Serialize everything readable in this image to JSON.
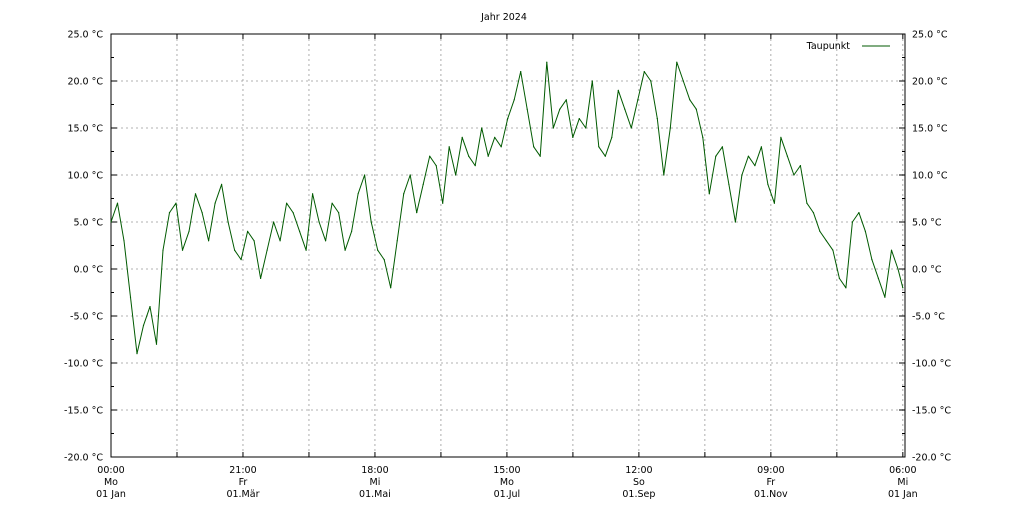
{
  "chart_data": {
    "type": "line",
    "title": "Jahr 2024",
    "xlabel": "",
    "ylabel": "",
    "ylim": [
      -20,
      25
    ],
    "y_ticks": [
      {
        "value": -20,
        "label": "-20.0 °C"
      },
      {
        "value": -15,
        "label": "-15.0 °C"
      },
      {
        "value": -10,
        "label": "-10.0 °C"
      },
      {
        "value": -5,
        "label": "-5.0 °C"
      },
      {
        "value": 0,
        "label": "0.0 °C"
      },
      {
        "value": 5,
        "label": "5.0 °C"
      },
      {
        "value": 10,
        "label": "10.0 °C"
      },
      {
        "value": 15,
        "label": "15.0 °C"
      },
      {
        "value": 20,
        "label": "20.0 °C"
      },
      {
        "value": 25,
        "label": "25.0 °C"
      }
    ],
    "xlim": [
      0,
      366.25
    ],
    "x_unit": "days since 01 Jan 2024 00:00",
    "x_ticks": [
      {
        "value": 0,
        "time": "00:00",
        "weekday": "Mo",
        "date": "01 Jan"
      },
      {
        "value": 60.875,
        "time": "21:00",
        "weekday": "Fr",
        "date": "01.Mär"
      },
      {
        "value": 121.75,
        "time": "18:00",
        "weekday": "Mi",
        "date": "01.Mai"
      },
      {
        "value": 182.625,
        "time": "15:00",
        "weekday": "Mo",
        "date": "01.Jul"
      },
      {
        "value": 243.5,
        "time": "12:00",
        "weekday": "So",
        "date": "01.Sep"
      },
      {
        "value": 304.375,
        "time": "09:00",
        "weekday": "Fr",
        "date": "01.Nov"
      },
      {
        "value": 365.25,
        "time": "06:00",
        "weekday": "Mi",
        "date": "01 Jan"
      }
    ],
    "grid": true,
    "legend_position": "top-right",
    "series": [
      {
        "name": "Taupunkt",
        "color": "#005a00",
        "x": [
          0,
          3,
          6,
          9,
          12,
          15,
          18,
          21,
          24,
          27,
          30,
          33,
          36,
          39,
          42,
          45,
          48,
          51,
          54,
          57,
          60,
          63,
          66,
          69,
          72,
          75,
          78,
          81,
          84,
          87,
          90,
          93,
          96,
          99,
          102,
          105,
          108,
          111,
          114,
          117,
          120,
          123,
          126,
          129,
          132,
          135,
          138,
          141,
          144,
          147,
          150,
          153,
          156,
          159,
          162,
          165,
          168,
          171,
          174,
          177,
          180,
          183,
          186,
          189,
          192,
          195,
          198,
          201,
          204,
          207,
          210,
          213,
          216,
          219,
          222,
          225,
          228,
          231,
          234,
          237,
          240,
          243,
          246,
          249,
          252,
          255,
          258,
          261,
          264,
          267,
          270,
          273,
          276,
          279,
          282,
          285,
          288,
          291,
          294,
          297,
          300,
          303,
          306,
          309,
          312,
          315,
          318,
          321,
          324,
          327,
          330,
          333,
          336,
          339,
          342,
          345,
          348,
          351,
          354,
          357,
          360,
          363,
          365.25
        ],
        "values": [
          5,
          7,
          3,
          -3,
          -9,
          -6,
          -4,
          -8,
          2,
          6,
          7,
          2,
          4,
          8,
          6,
          3,
          7,
          9,
          5,
          2,
          1,
          4,
          3,
          -1,
          2,
          5,
          3,
          7,
          6,
          4,
          2,
          8,
          5,
          3,
          7,
          6,
          2,
          4,
          8,
          10,
          5,
          2,
          1,
          -2,
          3,
          8,
          10,
          6,
          9,
          12,
          11,
          7,
          13,
          10,
          14,
          12,
          11,
          15,
          12,
          14,
          13,
          16,
          18,
          21,
          17,
          13,
          12,
          22,
          15,
          17,
          18,
          14,
          16,
          15,
          20,
          13,
          12,
          14,
          19,
          17,
          15,
          18,
          21,
          20,
          16,
          10,
          15,
          22,
          20,
          18,
          17,
          14,
          8,
          12,
          13,
          9,
          5,
          10,
          12,
          11,
          13,
          9,
          7,
          14,
          12,
          10,
          11,
          7,
          6,
          4,
          3,
          2,
          -1,
          -2,
          5,
          6,
          4,
          1,
          -1,
          -3,
          2,
          0,
          -2
        ]
      }
    ]
  }
}
